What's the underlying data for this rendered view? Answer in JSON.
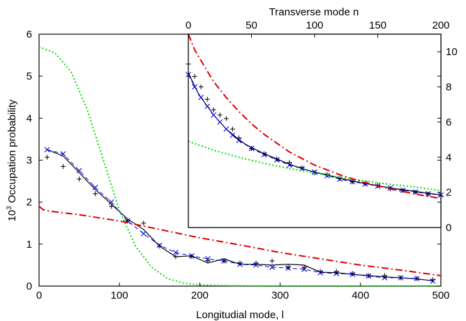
{
  "chart_data": [
    {
      "type": "line",
      "title": "",
      "xlabel": "Longitudial mode, l",
      "ylabel": "10^3 Occupation probability",
      "ylabel_parts": {
        "base": "10",
        "exponent": "3",
        "rest": " Occupation probability"
      },
      "xlim": [
        0,
        500
      ],
      "ylim": [
        0,
        6
      ],
      "xticks": [
        0,
        100,
        200,
        300,
        400,
        500
      ],
      "yticks": [
        0,
        1,
        2,
        3,
        4,
        5,
        6
      ],
      "grid": false,
      "series": [
        {
          "style": "solid",
          "color": "#000000",
          "x": [
            10,
            30,
            50,
            70,
            90,
            110,
            130,
            150,
            170,
            190,
            210,
            230,
            250,
            270,
            290,
            310,
            330,
            350,
            370,
            390,
            410,
            430,
            450,
            470,
            490
          ],
          "y": [
            3.25,
            3.1,
            2.7,
            2.3,
            1.95,
            1.6,
            1.35,
            0.95,
            0.7,
            0.72,
            0.55,
            0.65,
            0.52,
            0.52,
            0.5,
            0.52,
            0.5,
            0.33,
            0.32,
            0.28,
            0.25,
            0.22,
            0.2,
            0.17,
            0.13
          ]
        },
        {
          "style": "dashed-x",
          "color": "#0000ee",
          "x": [
            10,
            30,
            50,
            70,
            90,
            110,
            130,
            150,
            170,
            190,
            210,
            230,
            250,
            270,
            290,
            310,
            330,
            350,
            370,
            390,
            410,
            430,
            450,
            470,
            490
          ],
          "y": [
            3.25,
            3.15,
            2.75,
            2.35,
            2.0,
            1.55,
            1.25,
            0.97,
            0.8,
            0.72,
            0.65,
            0.6,
            0.52,
            0.5,
            0.45,
            0.43,
            0.4,
            0.32,
            0.3,
            0.28,
            0.24,
            0.2,
            0.2,
            0.18,
            0.12
          ]
        },
        {
          "style": "plus",
          "color": "#000000",
          "x": [
            10,
            30,
            50,
            70,
            90,
            110,
            130,
            150,
            170,
            190,
            210,
            230,
            250,
            270,
            290,
            310,
            330,
            350,
            370,
            390,
            410,
            430,
            450,
            470,
            490
          ],
          "y": [
            3.07,
            2.85,
            2.55,
            2.2,
            1.9,
            1.55,
            1.5,
            0.95,
            0.7,
            0.7,
            0.6,
            0.6,
            0.55,
            0.55,
            0.6,
            0.45,
            0.45,
            0.35,
            0.35,
            0.3,
            0.25,
            0.25,
            0.2,
            0.18,
            0.15
          ]
        },
        {
          "style": "dotted",
          "color": "#00dd00",
          "x": [
            0,
            20,
            40,
            60,
            80,
            100,
            120,
            140,
            160,
            180,
            200,
            240,
            300,
            400,
            500
          ],
          "y": [
            5.7,
            5.55,
            5.1,
            4.2,
            3.0,
            1.8,
            0.95,
            0.45,
            0.18,
            0.07,
            0.03,
            0.01,
            0.0,
            0.0,
            0.0
          ]
        },
        {
          "style": "dashdot",
          "color": "#dd0000",
          "x": [
            0,
            5,
            15,
            50,
            100,
            150,
            200,
            250,
            300,
            350,
            400,
            450,
            500
          ],
          "y": [
            1.9,
            1.82,
            1.78,
            1.7,
            1.55,
            1.35,
            1.15,
            0.98,
            0.8,
            0.65,
            0.5,
            0.38,
            0.25
          ]
        }
      ]
    },
    {
      "type": "line",
      "title": "",
      "xlabel": "Transverse mode n",
      "ylabel": "",
      "xlim": [
        0,
        200
      ],
      "ylim": [
        0,
        11
      ],
      "xticks": [
        0,
        50,
        100,
        150,
        200
      ],
      "yticks": [
        0,
        2,
        4,
        6,
        8,
        10
      ],
      "grid": false,
      "legend": "none",
      "series": [
        {
          "style": "solid",
          "color": "#000000",
          "x": [
            0,
            4,
            8,
            12,
            16,
            20,
            25,
            30,
            35,
            40,
            45,
            50,
            60,
            70,
            80,
            90,
            100,
            110,
            120,
            130,
            140,
            150,
            160,
            170,
            180,
            190,
            200
          ],
          "y": [
            8.8,
            8.2,
            7.6,
            7.2,
            6.8,
            6.4,
            6.0,
            5.6,
            5.3,
            5.0,
            4.75,
            4.55,
            4.2,
            3.9,
            3.6,
            3.35,
            3.15,
            3.0,
            2.8,
            2.65,
            2.5,
            2.38,
            2.25,
            2.15,
            2.05,
            1.95,
            1.85
          ]
        },
        {
          "style": "dashed-x",
          "color": "#0000ee",
          "x": [
            0,
            5,
            10,
            15,
            20,
            25,
            30,
            35,
            40,
            50,
            60,
            70,
            80,
            90,
            100,
            110,
            120,
            130,
            140,
            150,
            160,
            170,
            180,
            190,
            200
          ],
          "y": [
            8.7,
            8.0,
            7.4,
            6.9,
            6.4,
            6.0,
            5.6,
            5.25,
            4.95,
            4.5,
            4.15,
            3.85,
            3.55,
            3.35,
            3.15,
            2.95,
            2.75,
            2.6,
            2.48,
            2.35,
            2.25,
            2.12,
            2.02,
            1.92,
            1.85
          ]
        },
        {
          "style": "plus",
          "color": "#000000",
          "x": [
            0,
            5,
            10,
            15,
            20,
            25,
            30,
            35,
            40,
            50,
            60,
            70,
            80,
            90,
            100,
            110,
            120,
            130,
            140,
            150,
            160,
            170,
            180,
            190,
            200
          ],
          "y": [
            9.3,
            8.6,
            8.0,
            7.3,
            6.7,
            6.4,
            6.2,
            5.6,
            5.1,
            4.5,
            4.2,
            3.9,
            3.7,
            3.4,
            3.1,
            3.0,
            2.8,
            2.6,
            2.5,
            2.4,
            2.2,
            2.1,
            2.0,
            1.9,
            1.8
          ]
        },
        {
          "style": "dotted",
          "color": "#00dd00",
          "x": [
            0,
            20,
            40,
            60,
            80,
            100,
            120,
            140,
            160,
            180,
            200
          ],
          "y": [
            4.9,
            4.4,
            4.0,
            3.65,
            3.35,
            3.1,
            2.85,
            2.65,
            2.45,
            2.3,
            2.1
          ]
        },
        {
          "style": "dashdot",
          "color": "#dd0000",
          "x": [
            0,
            5,
            10,
            20,
            30,
            40,
            50,
            60,
            80,
            100,
            120,
            140,
            160,
            180,
            200
          ],
          "y": [
            11.0,
            10.1,
            9.5,
            8.3,
            7.4,
            6.6,
            5.9,
            5.3,
            4.3,
            3.55,
            3.0,
            2.55,
            2.2,
            1.9,
            1.65
          ]
        }
      ]
    }
  ]
}
